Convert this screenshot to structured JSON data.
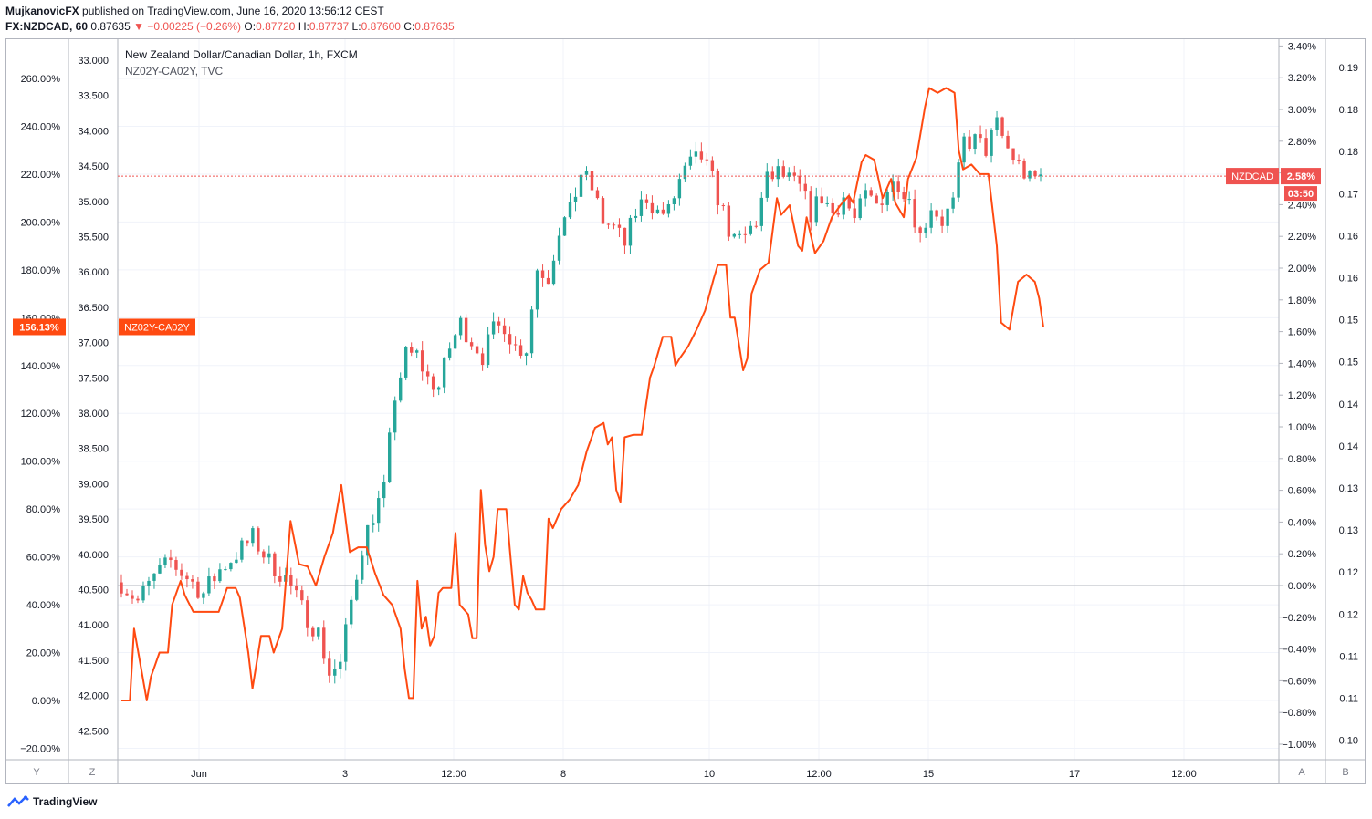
{
  "header": {
    "line1_author": "MujkanovicFX",
    "line1_rest": "published on TradingView.com, June 16, 2020 13:56:12 CEST",
    "symbol_interval": "FX:NZDCAD, 60",
    "last": "0.87635",
    "change": "▼ −0.00225 (−0.26%)",
    "o_label": "O:",
    "o_val": "0.87720",
    "h_label": "H:",
    "h_val": "0.87737",
    "l_label": "L:",
    "l_val": "0.87600",
    "c_label": "C:",
    "c_val": "0.87635"
  },
  "legend": {
    "main": "New Zealand Dollar/Canadian Dollar, 1h, FXCM",
    "overlay": "NZ02Y-CA02Y, TVC"
  },
  "footer": {
    "brand": "TradingView"
  },
  "scale_buttons": {
    "y": "Y",
    "z": "Z",
    "a": "A",
    "b": "B"
  },
  "colors": {
    "up": "#26a69a",
    "down": "#ef5350",
    "spread_line": "#ff4a11",
    "price_line": "#ef5350",
    "grid": "#f0f3fa",
    "text": "#131722"
  },
  "chart_data": {
    "type": "line",
    "title": "New Zealand Dollar/Canadian Dollar, 1h, FXCM",
    "x_tick_labels": [
      "Jun",
      "3",
      "12:00",
      "8",
      "12:00",
      "10",
      "12:00",
      "15",
      "17",
      "12:00"
    ],
    "axes": {
      "left_percent": {
        "ticks": [
          "260.00%",
          "240.00%",
          "220.00%",
          "200.00%",
          "180.00%",
          "160.00%",
          "140.00%",
          "120.00%",
          "100.00%",
          "80.00%",
          "60.00%",
          "40.00%",
          "20.00%",
          "0.00%",
          "−20.00%"
        ],
        "range": [
          -25,
          270
        ]
      },
      "left_inverted_price": {
        "ticks": [
          "33.000",
          "33.500",
          "34.000",
          "34.500",
          "35.000",
          "35.500",
          "36.000",
          "36.500",
          "37.000",
          "37.500",
          "38.000",
          "38.500",
          "39.000",
          "39.500",
          "40.000",
          "40.500",
          "41.000",
          "41.500",
          "42.000",
          "42.500"
        ],
        "inverted": true
      },
      "right_percent": {
        "ticks": [
          "3.40%",
          "3.20%",
          "3.00%",
          "2.80%",
          "2.60%",
          "2.40%",
          "2.20%",
          "2.00%",
          "1.80%",
          "1.60%",
          "1.40%",
          "1.20%",
          "1.00%",
          "0.80%",
          "0.60%",
          "0.40%",
          "0.20%",
          "−0.00%",
          "−0.20%",
          "−0.40%",
          "−0.60%",
          "−0.80%",
          "−1.00%"
        ],
        "range": [
          -1.1,
          3.45
        ]
      },
      "right_price": {
        "ticks": [
          "0.19",
          "0.18",
          "0.18",
          "0.17",
          "0.16",
          "0.16",
          "0.15",
          "0.15",
          "0.14",
          "0.14",
          "0.13",
          "0.13",
          "0.12",
          "0.12",
          "0.11",
          "0.11",
          "0.10"
        ]
      }
    },
    "series": [
      {
        "name": "NZDCAD",
        "type": "candlestick",
        "unit": "% change",
        "last_label": "2.58%",
        "countdown": "03:50",
        "close_path": [
          [
            0,
            0.02
          ],
          [
            3,
            -0.1
          ],
          [
            6,
            0.05
          ],
          [
            9,
            0.15
          ],
          [
            12,
            0.05
          ],
          [
            15,
            -0.05
          ],
          [
            18,
            0.1
          ],
          [
            21,
            0.2
          ],
          [
            24,
            0.3
          ],
          [
            27,
            0.15
          ],
          [
            30,
            0.05
          ],
          [
            33,
            -0.15
          ],
          [
            36,
            -0.3
          ],
          [
            38,
            -0.55
          ],
          [
            40,
            -0.5
          ],
          [
            42,
            -0.1
          ],
          [
            44,
            0.25
          ],
          [
            46,
            0.45
          ],
          [
            48,
            0.6
          ],
          [
            50,
            1.2
          ],
          [
            52,
            1.45
          ],
          [
            54,
            1.45
          ],
          [
            56,
            1.3
          ],
          [
            58,
            1.25
          ],
          [
            60,
            1.5
          ],
          [
            62,
            1.65
          ],
          [
            64,
            1.55
          ],
          [
            66,
            1.45
          ],
          [
            68,
            1.6
          ],
          [
            70,
            1.65
          ],
          [
            72,
            1.5
          ],
          [
            74,
            1.5
          ],
          [
            76,
            2.0
          ],
          [
            78,
            1.95
          ],
          [
            80,
            2.25
          ],
          [
            82,
            2.35
          ],
          [
            84,
            2.6
          ],
          [
            86,
            2.5
          ],
          [
            88,
            2.3
          ],
          [
            90,
            2.25
          ],
          [
            92,
            2.15
          ],
          [
            94,
            2.35
          ],
          [
            96,
            2.45
          ],
          [
            98,
            2.35
          ],
          [
            100,
            2.35
          ],
          [
            102,
            2.55
          ],
          [
            104,
            2.65
          ],
          [
            106,
            2.7
          ],
          [
            108,
            2.55
          ],
          [
            110,
            2.35
          ],
          [
            112,
            2.15
          ],
          [
            114,
            2.2
          ],
          [
            116,
            2.3
          ],
          [
            118,
            2.55
          ],
          [
            120,
            2.6
          ],
          [
            122,
            2.55
          ],
          [
            124,
            2.5
          ],
          [
            126,
            2.35
          ],
          [
            128,
            2.45
          ],
          [
            130,
            2.35
          ],
          [
            132,
            2.45
          ],
          [
            134,
            2.3
          ],
          [
            136,
            2.45
          ],
          [
            138,
            2.4
          ],
          [
            140,
            2.5
          ],
          [
            142,
            2.55
          ],
          [
            144,
            2.45
          ],
          [
            146,
            2.2
          ],
          [
            148,
            2.4
          ],
          [
            150,
            2.3
          ],
          [
            152,
            2.4
          ],
          [
            154,
            2.8
          ],
          [
            156,
            2.8
          ],
          [
            158,
            2.75
          ],
          [
            160,
            2.9
          ],
          [
            162,
            2.75
          ],
          [
            164,
            2.65
          ],
          [
            166,
            2.55
          ],
          [
            168,
            2.58
          ]
        ]
      },
      {
        "name": "NZ02Y-CA02Y",
        "type": "line",
        "unit": "% change",
        "last_label": "156.13%",
        "values": [
          [
            0,
            0
          ],
          [
            2,
            0
          ],
          [
            3,
            30
          ],
          [
            5,
            10
          ],
          [
            6,
            0
          ],
          [
            7,
            10
          ],
          [
            8,
            15
          ],
          [
            9,
            20
          ],
          [
            11,
            20
          ],
          [
            12,
            40
          ],
          [
            14,
            50
          ],
          [
            15,
            44
          ],
          [
            17,
            37
          ],
          [
            19,
            37
          ],
          [
            21,
            37
          ],
          [
            23,
            37
          ],
          [
            25,
            47
          ],
          [
            27,
            47
          ],
          [
            28,
            43
          ],
          [
            30,
            20
          ],
          [
            31,
            5
          ],
          [
            33,
            27
          ],
          [
            35,
            27
          ],
          [
            36,
            20
          ],
          [
            38,
            30
          ],
          [
            40,
            75
          ],
          [
            42,
            57
          ],
          [
            44,
            56
          ],
          [
            46,
            48
          ],
          [
            48,
            60
          ],
          [
            50,
            70
          ],
          [
            52,
            90
          ],
          [
            54,
            62
          ],
          [
            56,
            64
          ],
          [
            58,
            64
          ],
          [
            60,
            53
          ],
          [
            62,
            44
          ],
          [
            64,
            40
          ],
          [
            66,
            30
          ],
          [
            67,
            13
          ],
          [
            68,
            1
          ],
          [
            69,
            1
          ],
          [
            70,
            50
          ],
          [
            71,
            30
          ],
          [
            72,
            35
          ],
          [
            73,
            23
          ],
          [
            74,
            27
          ],
          [
            75,
            45
          ],
          [
            76,
            47
          ],
          [
            78,
            47
          ],
          [
            79,
            70
          ],
          [
            80,
            40
          ],
          [
            81,
            38
          ],
          [
            82,
            36
          ],
          [
            83,
            26
          ],
          [
            84,
            26
          ],
          [
            85,
            88
          ],
          [
            86,
            65
          ],
          [
            87,
            54
          ],
          [
            88,
            60
          ],
          [
            89,
            80
          ],
          [
            91,
            80
          ],
          [
            93,
            40
          ],
          [
            94,
            38
          ],
          [
            95,
            52
          ],
          [
            96,
            45
          ],
          [
            97,
            42
          ],
          [
            98,
            38
          ],
          [
            100,
            38
          ],
          [
            101,
            76
          ],
          [
            102,
            72
          ],
          [
            104,
            80
          ],
          [
            106,
            84
          ],
          [
            108,
            90
          ],
          [
            110,
            104
          ],
          [
            112,
            114
          ],
          [
            114,
            116
          ],
          [
            115,
            107
          ],
          [
            116,
            110
          ],
          [
            117,
            88
          ],
          [
            118,
            83
          ],
          [
            119,
            110
          ],
          [
            121,
            111
          ],
          [
            123,
            111
          ],
          [
            125,
            135
          ],
          [
            126,
            140
          ],
          [
            128,
            152
          ],
          [
            130,
            152
          ],
          [
            131,
            140
          ],
          [
            132,
            143
          ],
          [
            134,
            148
          ],
          [
            136,
            155
          ],
          [
            138,
            163
          ],
          [
            140,
            176
          ],
          [
            141,
            182
          ],
          [
            143,
            182
          ],
          [
            144,
            160
          ],
          [
            145,
            160
          ],
          [
            147,
            138
          ],
          [
            148,
            143
          ],
          [
            149,
            170
          ],
          [
            151,
            180
          ],
          [
            153,
            183
          ],
          [
            155,
            210
          ],
          [
            156,
            203
          ],
          [
            158,
            207
          ],
          [
            160,
            190
          ],
          [
            161,
            188
          ],
          [
            162,
            202
          ],
          [
            164,
            187
          ],
          [
            166,
            192
          ],
          [
            168,
            202
          ],
          [
            170,
            207
          ],
          [
            172,
            211
          ],
          [
            173,
            208
          ],
          [
            175,
            225
          ],
          [
            176,
            228
          ],
          [
            178,
            226
          ],
          [
            179,
            218
          ],
          [
            180,
            210
          ],
          [
            182,
            218
          ],
          [
            183,
            208
          ],
          [
            185,
            202
          ],
          [
            186,
            218
          ],
          [
            188,
            227
          ],
          [
            190,
            248
          ],
          [
            191,
            256
          ],
          [
            193,
            254
          ],
          [
            195,
            256
          ],
          [
            197,
            254
          ],
          [
            198,
            230
          ],
          [
            199,
            222
          ],
          [
            201,
            224
          ],
          [
            203,
            220
          ],
          [
            205,
            220
          ],
          [
            207,
            190
          ],
          [
            208,
            158
          ],
          [
            210,
            155
          ],
          [
            212,
            175
          ],
          [
            214,
            178
          ],
          [
            216,
            175
          ],
          [
            217,
            168
          ],
          [
            218,
            156
          ]
        ]
      }
    ]
  }
}
